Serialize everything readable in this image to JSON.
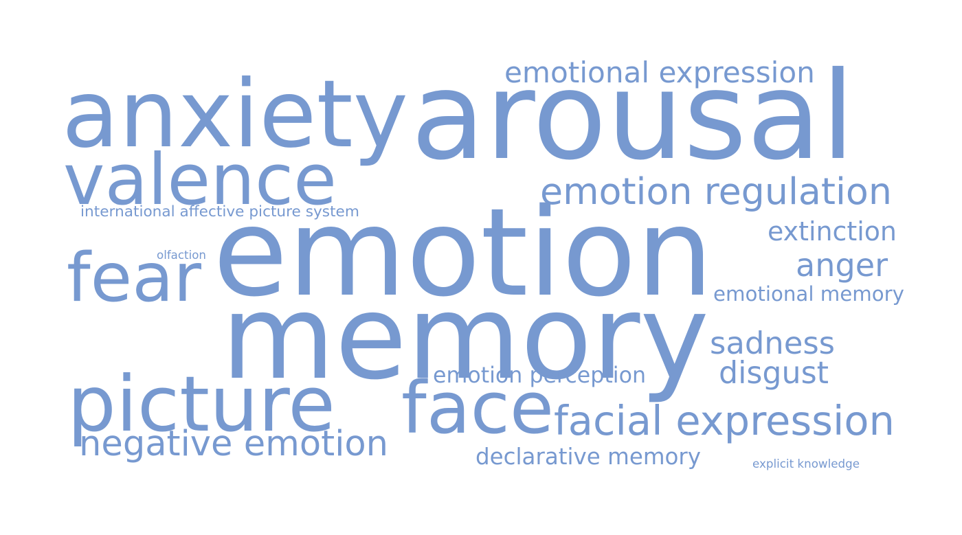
{
  "color": "#7799d0",
  "words": [
    {
      "id": "emotion",
      "text": "emotion",
      "weight": 100
    },
    {
      "id": "memory",
      "text": "memory",
      "weight": 100
    },
    {
      "id": "arousal",
      "text": "arousal",
      "weight": 84
    },
    {
      "id": "anxiety",
      "text": "anxiety",
      "weight": 68
    },
    {
      "id": "picture",
      "text": "picture",
      "weight": 61
    },
    {
      "id": "face",
      "text": "face",
      "weight": 61
    },
    {
      "id": "valence",
      "text": "valence",
      "weight": 58
    },
    {
      "id": "fear",
      "text": "fear",
      "weight": 55
    },
    {
      "id": "facial-expression",
      "text": "facial expression",
      "weight": 40
    },
    {
      "id": "emotion-regulation",
      "text": "emotion regulation",
      "weight": 36
    },
    {
      "id": "negative-emotion",
      "text": "negative emotion",
      "weight": 36
    },
    {
      "id": "sadness",
      "text": "sadness",
      "weight": 33
    },
    {
      "id": "disgust",
      "text": "disgust",
      "weight": 33
    },
    {
      "id": "emotional-expression",
      "text": "emotional expression",
      "weight": 31
    },
    {
      "id": "anger",
      "text": "anger",
      "weight": 31
    },
    {
      "id": "extinction",
      "text": "extinction",
      "weight": 29
    },
    {
      "id": "declarative-memory",
      "text": "declarative memory",
      "weight": 26
    },
    {
      "id": "emotion-perception",
      "text": "emotion perception",
      "weight": 24
    },
    {
      "id": "emotional-memory",
      "text": "emotional memory",
      "weight": 23
    },
    {
      "id": "international-affective-picture-system",
      "text": "international affective picture system",
      "weight": 19
    },
    {
      "id": "explicit-knowledge",
      "text": "explicit knowledge",
      "weight": 15
    },
    {
      "id": "olfaction",
      "text": "olfaction",
      "weight": 14
    }
  ]
}
